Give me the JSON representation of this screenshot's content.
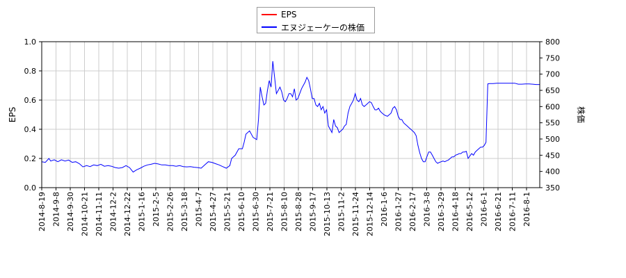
{
  "chart_data": {
    "type": "line",
    "legend_placement": "top-center",
    "grid": true,
    "x_tick_labels": [
      "2014-8-19",
      "2014-9-8",
      "2014-9-30",
      "2014-10-21",
      "2014-11-11",
      "2014-12-2",
      "2014-12-22",
      "2015-1-16",
      "2015-2-5",
      "2015-2-26",
      "2015-3-18",
      "2015-4-7",
      "2015-4-27",
      "2015-5-21",
      "2015-6-10",
      "2015-6-30",
      "2015-7-21",
      "2015-8-10",
      "2015-8-28",
      "2015-9-17",
      "2015-10-13",
      "2015-11-2",
      "2015-11-24",
      "2015-12-14",
      "2016-1-6",
      "2016-1-27",
      "2016-2-17",
      "2016-3-8",
      "2016-3-29",
      "2016-4-18",
      "2016-5-12",
      "2016-6-1",
      "2016-6-21",
      "2016-7-11",
      "2016-8-1"
    ],
    "ylabel_left": "EPS",
    "ylim_left": [
      0,
      1.0
    ],
    "yticks_left": [
      "0.0",
      "0.2",
      "0.4",
      "0.6",
      "0.8",
      "1.0"
    ],
    "ylabel_right": "株価",
    "ylim_right": [
      350,
      800
    ],
    "yticks_right": [
      "350",
      "400",
      "450",
      "500",
      "550",
      "600",
      "650",
      "700",
      "750",
      "800"
    ],
    "series": [
      {
        "name": "EPS",
        "color": "#ff0000",
        "axis": "left",
        "values": []
      },
      {
        "name": "エヌジェーケーの株価",
        "color": "#0000ff",
        "axis": "right",
        "points": [
          [
            0,
            430
          ],
          [
            2,
            428
          ],
          [
            4,
            440
          ],
          [
            5,
            432
          ],
          [
            7,
            436
          ],
          [
            9,
            430
          ],
          [
            11,
            436
          ],
          [
            13,
            432
          ],
          [
            15,
            435
          ],
          [
            17,
            428
          ],
          [
            19,
            430
          ],
          [
            21,
            424
          ],
          [
            23,
            414
          ],
          [
            25,
            418
          ],
          [
            27,
            415
          ],
          [
            29,
            420
          ],
          [
            31,
            418
          ],
          [
            33,
            422
          ],
          [
            35,
            416
          ],
          [
            37,
            418
          ],
          [
            39,
            416
          ],
          [
            41,
            412
          ],
          [
            43,
            410
          ],
          [
            45,
            412
          ],
          [
            47,
            418
          ],
          [
            49,
            412
          ],
          [
            51,
            398
          ],
          [
            53,
            405
          ],
          [
            55,
            410
          ],
          [
            57,
            416
          ],
          [
            59,
            420
          ],
          [
            61,
            422
          ],
          [
            63,
            425
          ],
          [
            65,
            423
          ],
          [
            67,
            420
          ],
          [
            69,
            420
          ],
          [
            71,
            418
          ],
          [
            73,
            418
          ],
          [
            75,
            416
          ],
          [
            77,
            418
          ],
          [
            79,
            415
          ],
          [
            81,
            414
          ],
          [
            83,
            415
          ],
          [
            85,
            413
          ],
          [
            87,
            412
          ],
          [
            89,
            410
          ],
          [
            91,
            420
          ],
          [
            93,
            430
          ],
          [
            95,
            428
          ],
          [
            97,
            424
          ],
          [
            99,
            420
          ],
          [
            101,
            415
          ],
          [
            103,
            410
          ],
          [
            105,
            418
          ],
          [
            106,
            440
          ],
          [
            108,
            450
          ],
          [
            110,
            470
          ],
          [
            112,
            470
          ],
          [
            113,
            490
          ],
          [
            114,
            515
          ],
          [
            116,
            525
          ],
          [
            118,
            505
          ],
          [
            120,
            498
          ],
          [
            121,
            560
          ],
          [
            122,
            660
          ],
          [
            123,
            630
          ],
          [
            124,
            605
          ],
          [
            125,
            610
          ],
          [
            126,
            650
          ],
          [
            127,
            680
          ],
          [
            128,
            660
          ],
          [
            129,
            740
          ],
          [
            130,
            690
          ],
          [
            131,
            640
          ],
          [
            132,
            650
          ],
          [
            133,
            660
          ],
          [
            134,
            645
          ],
          [
            135,
            620
          ],
          [
            136,
            615
          ],
          [
            137,
            625
          ],
          [
            138,
            640
          ],
          [
            139,
            640
          ],
          [
            140,
            630
          ],
          [
            141,
            655
          ],
          [
            142,
            620
          ],
          [
            143,
            625
          ],
          [
            144,
            640
          ],
          [
            145,
            655
          ],
          [
            146,
            665
          ],
          [
            147,
            675
          ],
          [
            148,
            690
          ],
          [
            149,
            680
          ],
          [
            150,
            655
          ],
          [
            151,
            625
          ],
          [
            152,
            625
          ],
          [
            153,
            605
          ],
          [
            154,
            600
          ],
          [
            155,
            610
          ],
          [
            156,
            590
          ],
          [
            157,
            600
          ],
          [
            158,
            580
          ],
          [
            159,
            590
          ],
          [
            160,
            540
          ],
          [
            161,
            530
          ],
          [
            162,
            520
          ],
          [
            163,
            560
          ],
          [
            164,
            540
          ],
          [
            165,
            535
          ],
          [
            166,
            520
          ],
          [
            167,
            525
          ],
          [
            168,
            530
          ],
          [
            169,
            540
          ],
          [
            170,
            545
          ],
          [
            171,
            580
          ],
          [
            172,
            600
          ],
          [
            173,
            610
          ],
          [
            174,
            620
          ],
          [
            175,
            640
          ],
          [
            176,
            620
          ],
          [
            177,
            615
          ],
          [
            178,
            625
          ],
          [
            179,
            605
          ],
          [
            180,
            600
          ],
          [
            181,
            605
          ],
          [
            182,
            610
          ],
          [
            183,
            615
          ],
          [
            184,
            612
          ],
          [
            185,
            600
          ],
          [
            186,
            590
          ],
          [
            187,
            590
          ],
          [
            188,
            595
          ],
          [
            189,
            585
          ],
          [
            190,
            580
          ],
          [
            191,
            575
          ],
          [
            192,
            572
          ],
          [
            193,
            570
          ],
          [
            194,
            575
          ],
          [
            195,
            580
          ],
          [
            196,
            595
          ],
          [
            197,
            600
          ],
          [
            198,
            590
          ],
          [
            199,
            570
          ],
          [
            200,
            560
          ],
          [
            201,
            560
          ],
          [
            202,
            550
          ],
          [
            203,
            545
          ],
          [
            204,
            540
          ],
          [
            205,
            535
          ],
          [
            206,
            530
          ],
          [
            207,
            525
          ],
          [
            208,
            520
          ],
          [
            209,
            510
          ],
          [
            210,
            480
          ],
          [
            211,
            458
          ],
          [
            212,
            440
          ],
          [
            213,
            430
          ],
          [
            214,
            430
          ],
          [
            215,
            445
          ],
          [
            216,
            460
          ],
          [
            217,
            460
          ],
          [
            218,
            450
          ],
          [
            219,
            440
          ],
          [
            220,
            430
          ],
          [
            221,
            425
          ],
          [
            222,
            428
          ],
          [
            223,
            430
          ],
          [
            224,
            432
          ],
          [
            225,
            430
          ],
          [
            226,
            433
          ],
          [
            227,
            435
          ],
          [
            228,
            440
          ],
          [
            229,
            445
          ],
          [
            230,
            445
          ],
          [
            231,
            450
          ],
          [
            232,
            452
          ],
          [
            233,
            455
          ],
          [
            234,
            455
          ],
          [
            235,
            460
          ],
          [
            236,
            460
          ],
          [
            237,
            462
          ],
          [
            238,
            440
          ],
          [
            239,
            448
          ],
          [
            240,
            455
          ],
          [
            241,
            450
          ],
          [
            242,
            460
          ],
          [
            243,
            465
          ],
          [
            244,
            470
          ],
          [
            245,
            475
          ],
          [
            246,
            475
          ],
          [
            247,
            480
          ],
          [
            248,
            490
          ],
          [
            249,
            670
          ],
          [
            250,
            671
          ],
          [
            252,
            671
          ],
          [
            254,
            672
          ],
          [
            256,
            672
          ],
          [
            258,
            672
          ],
          [
            260,
            672
          ],
          [
            262,
            672
          ],
          [
            264,
            672
          ],
          [
            266,
            669
          ],
          [
            268,
            669
          ],
          [
            270,
            670
          ],
          [
            272,
            670
          ],
          [
            274,
            669
          ],
          [
            276,
            668
          ],
          [
            278,
            668
          ]
        ]
      }
    ]
  }
}
